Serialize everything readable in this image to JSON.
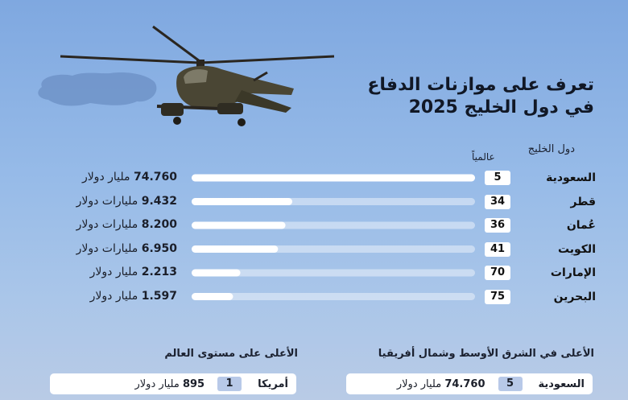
{
  "title_line1": "تعرف على موازنات الدفاع",
  "title_line2": "في دول الخليج 2025",
  "header_country": "دول الخليج",
  "header_rank": "عالمياً",
  "chart_data": {
    "type": "bar",
    "orientation": "horizontal",
    "categories": [
      "السعودية",
      "قطر",
      "عُمان",
      "الكويت",
      "الإمارات",
      "البحرين"
    ],
    "values": [
      74.76,
      9.432,
      8.2,
      6.95,
      2.213,
      1.597
    ],
    "world_rank": [
      5,
      34,
      36,
      41,
      70,
      75
    ],
    "value_labels": [
      "74.760",
      "9.432",
      "8.200",
      "6.950",
      "2.213",
      "1.597"
    ],
    "unit_labels": [
      "مليار دولار",
      "مليارات دولار",
      "مليارات دولار",
      "مليارات دولار",
      "مليار دولار",
      "مليار دولار"
    ],
    "grid": false
  },
  "bottom": {
    "mena_title": "الأعلى في الشرق الأوسط وشمال أفريقيا",
    "mena_country": "السعودية",
    "mena_rank": "5",
    "mena_value": "74.760",
    "mena_unit": "مليار دولار",
    "world_title": "الأعلى على مستوى العالم",
    "world_country": "أمريكا",
    "world_rank": "1",
    "world_value": "895",
    "world_unit": "مليار دولار"
  },
  "colors": {
    "bar_track": "#eaf0fa",
    "bar_fill": "#ffffff",
    "rank_badge": "#b8c9e8"
  }
}
